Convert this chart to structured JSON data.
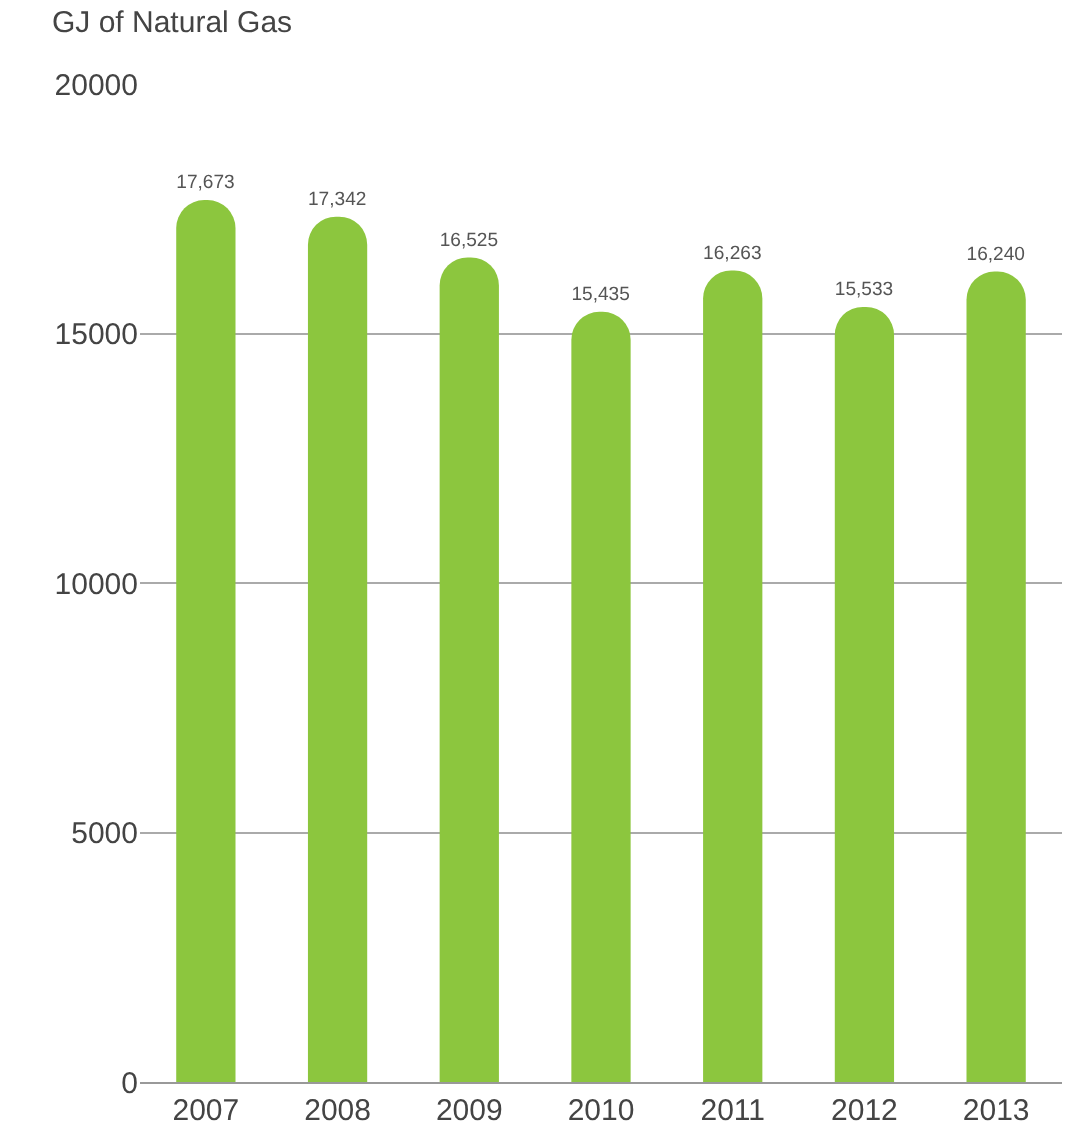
{
  "chart_data": {
    "type": "bar",
    "ylabel": "GJ of Natural Gas",
    "categories": [
      "2007",
      "2008",
      "2009",
      "2010",
      "2011",
      "2012",
      "2013"
    ],
    "values": [
      17673,
      17342,
      16525,
      15435,
      16263,
      15533,
      16240
    ],
    "value_labels": [
      "17,673",
      "17,342",
      "16,525",
      "15,435",
      "16,263",
      "15,533",
      "16,240"
    ],
    "color": "#8cc63e",
    "ylim": [
      0,
      20000
    ],
    "yticks": [
      0,
      5000,
      10000,
      15000,
      20000
    ],
    "grid": "y",
    "legend": false
  }
}
